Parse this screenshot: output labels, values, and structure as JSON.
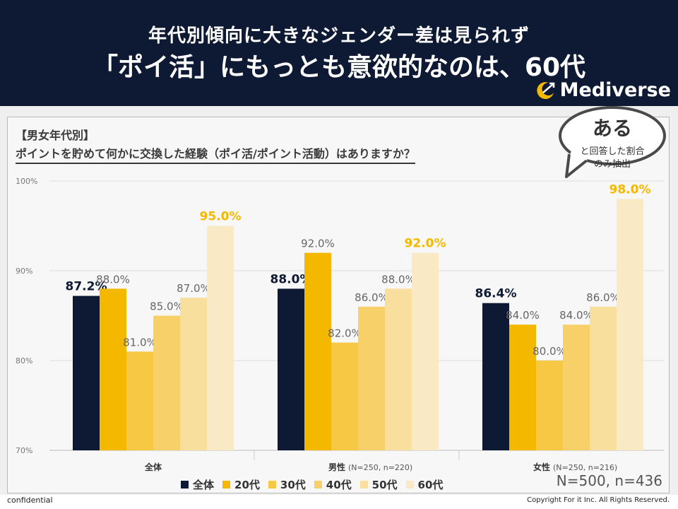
{
  "header": {
    "title_line1": "年代別傾向に大きなジェンダー差は見られず",
    "title_line2": "「ポイ活」にもっとも意欲的なのは、60代",
    "brand": "Mediverse"
  },
  "subtitle": {
    "line1": "【男女年代別】",
    "line2": "ポイントを貯めて何かに交換した経験（ポイ活/ポイント活動）はありますか？"
  },
  "callout": {
    "main": "ある",
    "sub1": "と回答した割合",
    "sub2": "のみ抽出"
  },
  "sample_size": "N=500, n=436",
  "footer": {
    "left": "confidential",
    "right": "Copyright For it Inc. All Rights Reserved."
  },
  "chart_data": {
    "type": "bar",
    "title": "ポイントを貯めて何かに交換した経験（ポイ活/ポイント活動）はありますか？",
    "ylim": [
      70,
      100
    ],
    "yticks": [
      70,
      80,
      90,
      100
    ],
    "ytick_labels": [
      "70%",
      "80%",
      "90%",
      "100%"
    ],
    "grid": true,
    "categories": [
      {
        "label": "全体",
        "note": ""
      },
      {
        "label": "男性",
        "note": "(N=250, n=220)"
      },
      {
        "label": "女性",
        "note": "(N=250, n=216)"
      }
    ],
    "series": [
      {
        "name": "全体",
        "color": "#0e1a33",
        "values": [
          87.2,
          88.0,
          86.4
        ],
        "labels": [
          "87.2%",
          "88.0%",
          "86.4%"
        ],
        "highlight": true,
        "label_color": "#0e1a33"
      },
      {
        "name": "20代",
        "color": "#f5b800",
        "values": [
          88.0,
          92.0,
          84.0
        ],
        "labels": [
          "88.0%",
          "92.0%",
          "84.0%"
        ],
        "highlight": false,
        "label_color": "#666666"
      },
      {
        "name": "30代",
        "color": "#f7c843",
        "values": [
          81.0,
          82.0,
          80.0
        ],
        "labels": [
          "81.0%",
          "82.0%",
          "80.0%"
        ],
        "highlight": false,
        "label_color": "#666666"
      },
      {
        "name": "40代",
        "color": "#f8d06a",
        "values": [
          85.0,
          86.0,
          84.0
        ],
        "labels": [
          "85.0%",
          "86.0%",
          "84.0%"
        ],
        "highlight": false,
        "label_color": "#666666"
      },
      {
        "name": "50代",
        "color": "#f9df9e",
        "values": [
          87.0,
          88.0,
          86.0
        ],
        "labels": [
          "87.0%",
          "88.0%",
          "86.0%"
        ],
        "highlight": false,
        "label_color": "#666666"
      },
      {
        "name": "60代",
        "color": "#f9e9c4",
        "values": [
          95.0,
          92.0,
          98.0
        ],
        "labels": [
          "95.0%",
          "92.0%",
          "98.0%"
        ],
        "highlight": true,
        "label_color": "#f5b800"
      }
    ]
  }
}
